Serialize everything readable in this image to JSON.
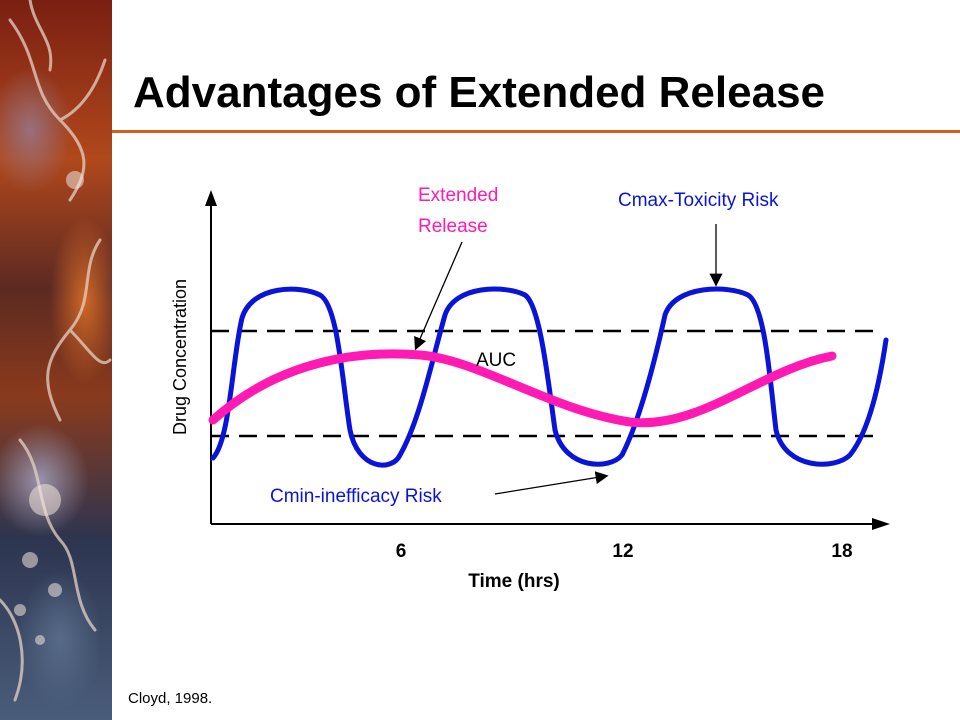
{
  "slide": {
    "title": "Advantages of Extended Release",
    "citation": "Cloyd, 1998."
  },
  "labels": {
    "extended_release_line1": "Extended",
    "extended_release_line2": "Release",
    "cmax": "Cmax-Toxicity Risk",
    "cmin": "Cmin-inefficacy Risk",
    "auc": "AUC"
  },
  "axes": {
    "x_label": "Time (hrs)",
    "y_label": "Drug Concentration",
    "x_ticks": [
      "6",
      "12",
      "18"
    ]
  },
  "colors": {
    "accent_rule": "#d0601e",
    "immediate_release_curve": "#0a14d8",
    "extended_release_curve": "#ff1ab4",
    "extended_label": "#ff1ab4",
    "cmax_label": "#0a14d8",
    "cmin_label": "#0a14d8"
  }
}
